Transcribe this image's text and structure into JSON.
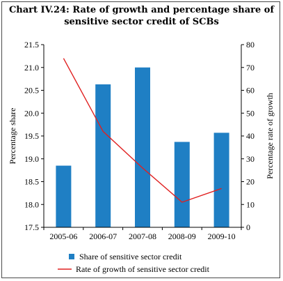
{
  "chart_data": {
    "type": "bar+line",
    "title_line1": "Chart IV.24: Rate of growth and percentage share of",
    "title_line2": "sensitive sector credit of SCBs",
    "categories": [
      "2005-06",
      "2006-07",
      "2007-08",
      "2008-09",
      "2009-10"
    ],
    "ylabel_left": "Percentage share",
    "ylabel_right": "Percentage rate of growth",
    "ylim_left": [
      17.5,
      21.5
    ],
    "yticks_left": [
      "17.5",
      "18.0",
      "18.5",
      "19.0",
      "19.5",
      "20.0",
      "20.5",
      "21.0",
      "21.5"
    ],
    "ylim_right": [
      0,
      80
    ],
    "yticks_right": [
      "0",
      "10",
      "20",
      "30",
      "40",
      "50",
      "60",
      "70",
      "80"
    ],
    "grid": false,
    "legend_position": "bottom",
    "series": [
      {
        "name": "Share of sensitive sector credit",
        "kind": "bar",
        "axis": "left",
        "color": "#1f7fc4",
        "values": [
          18.85,
          20.63,
          21.0,
          19.37,
          19.57
        ]
      },
      {
        "name": "Rate of growth of sensitive sector credit",
        "kind": "line",
        "axis": "right",
        "color": "#e02020",
        "values": [
          74,
          42,
          26,
          11,
          17
        ]
      }
    ]
  }
}
